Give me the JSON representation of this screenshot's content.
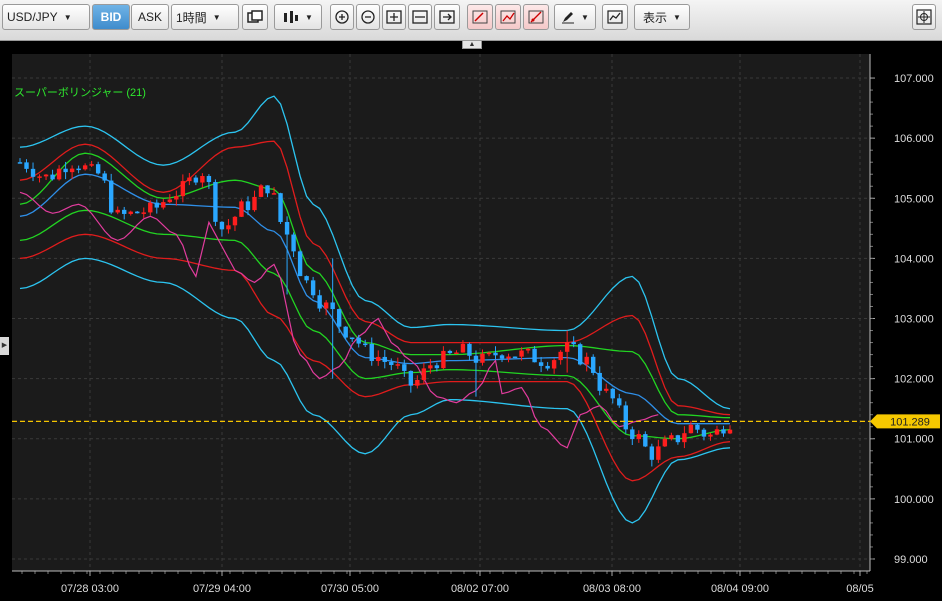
{
  "toolbar": {
    "symbol": "USD/JPY",
    "bid_label": "BID",
    "ask_label": "ASK",
    "timeframe": "1時間",
    "display_label": "表示",
    "icons": [
      "copy-chart-icon",
      "candlestick-type-icon",
      "zoom-in-icon",
      "zoom-out-icon",
      "fit-icon",
      "shrink-icon",
      "scroll-right-icon",
      "draw-line-icon",
      "draw-trend-icon",
      "draw-fib-icon",
      "pen-icon",
      "indicator-icon",
      "crosshair-icon"
    ]
  },
  "indicator": {
    "label": "スーパーボリンジャー (21)"
  },
  "current_price": "101.289",
  "colors": {
    "background": "#000000",
    "plot_bg": "#1b1b1b",
    "grid": "#3a3a3a",
    "up_candle": "#ff1e1e",
    "down_candle": "#2aa7ff",
    "band_outer": "#2cc4f0",
    "band_2sigma": "#e01c1c",
    "band_1sigma": "#22d422",
    "midline": "#2f8fe8",
    "lagging_span": "#e23c9e",
    "price_line": "#f5c400"
  },
  "chart_data": {
    "type": "candlestick",
    "x_labels": [
      "07/28 03:00",
      "07/29 04:00",
      "07/30 05:00",
      "08/02 07:00",
      "08/03 08:00",
      "08/04 09:00",
      "08/05"
    ],
    "y_ticks": [
      "107.000",
      "106.000",
      "105.000",
      "104.000",
      "103.000",
      "102.000",
      "101.000",
      "100.000",
      "99.000"
    ],
    "y_range": [
      98.8,
      107.4
    ],
    "current_price": 101.289,
    "candle_count": 110,
    "close_path": [
      [
        0,
        105.6
      ],
      [
        4,
        105.35
      ],
      [
        8,
        105.6
      ],
      [
        12,
        105.4
      ],
      [
        15,
        104.7
      ],
      [
        20,
        104.8
      ],
      [
        24,
        105.1
      ],
      [
        28,
        105.45
      ],
      [
        31,
        104.5
      ],
      [
        35,
        104.9
      ],
      [
        38,
        105.2
      ],
      [
        41,
        104.4
      ],
      [
        44,
        103.6
      ],
      [
        47,
        103.2
      ],
      [
        50,
        102.8
      ],
      [
        54,
        102.4
      ],
      [
        57,
        102.25
      ],
      [
        60,
        101.9
      ],
      [
        64,
        102.3
      ],
      [
        68,
        102.45
      ],
      [
        71,
        102.3
      ],
      [
        74,
        102.45
      ],
      [
        77,
        102.4
      ],
      [
        81,
        102.3
      ],
      [
        84,
        102.5
      ],
      [
        87,
        102.3
      ],
      [
        90,
        101.75
      ],
      [
        94,
        101.1
      ],
      [
        97,
        100.75
      ],
      [
        100,
        100.95
      ],
      [
        103,
        101.2
      ],
      [
        106,
        101.05
      ],
      [
        109,
        101.29
      ]
    ],
    "bands": [
      {
        "name": "+3σ",
        "color": "#2cc4f0",
        "anchors": [
          [
            0,
            105.85
          ],
          [
            10,
            106.2
          ],
          [
            22,
            105.55
          ],
          [
            33,
            106.1
          ],
          [
            39,
            106.7
          ],
          [
            45,
            104.9
          ],
          [
            53,
            103.3
          ],
          [
            60,
            102.85
          ],
          [
            66,
            102.9
          ],
          [
            84,
            102.8
          ],
          [
            94,
            103.7
          ],
          [
            101,
            102.0
          ],
          [
            109,
            101.5
          ]
        ]
      },
      {
        "name": "+2σ",
        "color": "#e01c1c",
        "anchors": [
          [
            0,
            105.3
          ],
          [
            10,
            105.9
          ],
          [
            22,
            105.1
          ],
          [
            33,
            105.85
          ],
          [
            39,
            105.95
          ],
          [
            45,
            104.25
          ],
          [
            53,
            102.95
          ],
          [
            60,
            102.6
          ],
          [
            66,
            102.6
          ],
          [
            84,
            102.6
          ],
          [
            94,
            103.05
          ],
          [
            101,
            101.55
          ],
          [
            109,
            101.4
          ]
        ]
      },
      {
        "name": "+1σ",
        "color": "#22d422",
        "anchors": [
          [
            0,
            104.9
          ],
          [
            10,
            105.75
          ],
          [
            22,
            105.0
          ],
          [
            33,
            105.3
          ],
          [
            39,
            105.15
          ],
          [
            45,
            103.8
          ],
          [
            53,
            102.6
          ],
          [
            60,
            102.4
          ],
          [
            66,
            102.4
          ],
          [
            84,
            102.55
          ],
          [
            94,
            102.45
          ],
          [
            101,
            101.4
          ],
          [
            109,
            101.35
          ]
        ]
      },
      {
        "name": "MA",
        "color": "#2f8fe8",
        "anchors": [
          [
            0,
            104.7
          ],
          [
            10,
            105.4
          ],
          [
            22,
            104.9
          ],
          [
            33,
            104.85
          ],
          [
            39,
            104.45
          ],
          [
            45,
            103.3
          ],
          [
            53,
            102.35
          ],
          [
            60,
            102.25
          ],
          [
            66,
            102.3
          ],
          [
            84,
            102.35
          ],
          [
            94,
            101.75
          ],
          [
            101,
            101.25
          ],
          [
            109,
            101.25
          ]
        ]
      },
      {
        "name": "-1σ",
        "color": "#22d422",
        "anchors": [
          [
            0,
            104.3
          ],
          [
            10,
            104.8
          ],
          [
            22,
            104.4
          ],
          [
            33,
            104.3
          ],
          [
            39,
            103.75
          ],
          [
            45,
            102.8
          ],
          [
            53,
            102.0
          ],
          [
            60,
            102.1
          ],
          [
            66,
            102.15
          ],
          [
            84,
            102.05
          ],
          [
            94,
            101.05
          ],
          [
            101,
            101.0
          ],
          [
            109,
            101.15
          ]
        ]
      },
      {
        "name": "-2σ",
        "color": "#e01c1c",
        "anchors": [
          [
            0,
            104.0
          ],
          [
            10,
            104.4
          ],
          [
            22,
            104.0
          ],
          [
            33,
            103.8
          ],
          [
            39,
            103.05
          ],
          [
            45,
            102.3
          ],
          [
            53,
            101.7
          ],
          [
            60,
            101.9
          ],
          [
            66,
            101.95
          ],
          [
            84,
            101.95
          ],
          [
            94,
            100.3
          ],
          [
            101,
            100.7
          ],
          [
            109,
            100.95
          ]
        ]
      },
      {
        "name": "-3σ",
        "color": "#2cc4f0",
        "anchors": [
          [
            0,
            103.5
          ],
          [
            10,
            104.0
          ],
          [
            22,
            103.6
          ],
          [
            33,
            103.0
          ],
          [
            39,
            102.3
          ],
          [
            45,
            101.4
          ],
          [
            53,
            100.75
          ],
          [
            60,
            101.4
          ],
          [
            66,
            101.65
          ],
          [
            84,
            101.5
          ],
          [
            94,
            99.6
          ],
          [
            101,
            100.65
          ],
          [
            109,
            100.85
          ]
        ]
      }
    ],
    "lagging_span": {
      "color": "#e23c9e",
      "anchors": [
        [
          0,
          105.1
        ],
        [
          5,
          104.75
        ],
        [
          9,
          104.9
        ],
        [
          15,
          104.3
        ],
        [
          20,
          104.7
        ],
        [
          24,
          104.4
        ],
        [
          27,
          103.7
        ],
        [
          29,
          104.6
        ],
        [
          31,
          104.2
        ],
        [
          33,
          103.8
        ],
        [
          36,
          103.6
        ],
        [
          39,
          103.9
        ],
        [
          43,
          102.4
        ],
        [
          46,
          102.0
        ],
        [
          49,
          102.2
        ],
        [
          52,
          102.7
        ],
        [
          55,
          103.0
        ],
        [
          57,
          102.6
        ],
        [
          60,
          102.3
        ],
        [
          64,
          101.7
        ],
        [
          67,
          101.6
        ],
        [
          70,
          101.8
        ],
        [
          73,
          102.3
        ],
        [
          74,
          101.75
        ],
        [
          77,
          101.85
        ],
        [
          80,
          101.2
        ],
        [
          84,
          100.85
        ],
        [
          86,
          101.4
        ],
        [
          89,
          101.55
        ],
        [
          92,
          101.2
        ],
        [
          95,
          101.3
        ],
        [
          98,
          101.4
        ]
      ]
    },
    "wicks": [
      [
        41,
        104.7,
        103.4
      ],
      [
        48,
        104.0,
        102.0
      ],
      [
        70,
        102.1,
        101.7
      ],
      [
        84,
        102.8,
        102.1
      ]
    ]
  }
}
